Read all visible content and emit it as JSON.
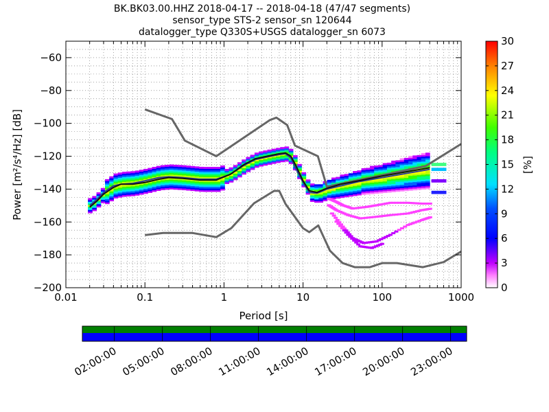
{
  "title": {
    "line1": "BK.BK03.00.HHZ   2018-04-17 -- 2018-04-18  (47/47 segments)",
    "line2": "sensor_type STS-2 sensor_sn 120644",
    "line3": "datalogger_type Q330S+USGS datalogger_sn 6073"
  },
  "colors": {
    "nlnm_nhnm": "#666666",
    "mean": "#111111",
    "mode": "#2a3a9a",
    "grid": "#666666",
    "bar_top": "#008000",
    "bar_bottom": "#0000ff",
    "axis": "#000000"
  },
  "chart_data": {
    "type": "heatmap",
    "xscale": "log",
    "xlabel": "Period [s]",
    "ylabel": "Power [m²/s⁴/Hz] [dB]",
    "xlim": [
      0.01,
      1000
    ],
    "ylim": [
      -200,
      -50
    ],
    "x_ticks": [
      0.01,
      0.1,
      1,
      10,
      100,
      1000
    ],
    "x_tick_labels": [
      "0.01",
      "0.1",
      "1",
      "10",
      "100",
      "1000"
    ],
    "y_ticks": [
      -200,
      -180,
      -160,
      -140,
      -120,
      -100,
      -80,
      -60
    ],
    "y_tick_labels": [
      "−200",
      "−180",
      "−160",
      "−140",
      "−120",
      "−100",
      "−80",
      "−60"
    ],
    "grid": "dotted",
    "colorbar": {
      "label": "[%]",
      "range": [
        0,
        30
      ],
      "ticks": [
        0,
        3,
        6,
        9,
        12,
        15,
        18,
        21,
        24,
        27,
        30
      ],
      "tick_labels": [
        "0",
        "3",
        "6",
        "9",
        "12",
        "15",
        "18",
        "21",
        "24",
        "27",
        "30"
      ]
    },
    "nhnm": {
      "x": [
        0.1,
        0.22,
        0.32,
        0.8,
        3.8,
        4.6,
        6.3,
        7.9,
        15.4,
        20,
        354.8,
        1000
      ],
      "y": [
        -91.5,
        -97.4,
        -110.5,
        -120,
        -98,
        -96.5,
        -101,
        -113.5,
        -120,
        -138.5,
        -126,
        -112.5
      ]
    },
    "nlnm": {
      "x": [
        0.1,
        0.17,
        0.4,
        0.8,
        1.24,
        2.4,
        4.3,
        5,
        6,
        10,
        12,
        15.6,
        21.9,
        31.6,
        45,
        70,
        101,
        154,
        328,
        600,
        1000
      ],
      "y": [
        -168,
        -166.7,
        -166.7,
        -169.2,
        -163.7,
        -148.6,
        -141.1,
        -141.1,
        -149,
        -163.8,
        -166.2,
        -162.1,
        -177.5,
        -185,
        -187.5,
        -187.5,
        -185,
        -185,
        -187.5,
        -184.4,
        -178
      ]
    },
    "mode_curve": {
      "x": [
        0.02,
        0.025,
        0.03,
        0.04,
        0.05,
        0.07,
        0.1,
        0.15,
        0.2,
        0.3,
        0.5,
        0.8,
        1.2,
        1.8,
        2.5,
        3.5,
        5,
        6,
        7,
        8,
        10,
        12,
        15,
        20,
        30,
        50,
        100,
        200,
        400
      ],
      "y": [
        -150,
        -146,
        -142,
        -138,
        -137,
        -136.5,
        -135,
        -133,
        -132.5,
        -133,
        -134,
        -134,
        -131,
        -125.5,
        -122,
        -120.5,
        -119,
        -118.5,
        -121,
        -127,
        -136,
        -142,
        -142.5,
        -140,
        -138,
        -135.5,
        -133,
        -130.5,
        -128
      ]
    },
    "mean_curve": {
      "x": [
        0.02,
        0.025,
        0.03,
        0.04,
        0.05,
        0.07,
        0.1,
        0.15,
        0.2,
        0.3,
        0.5,
        0.8,
        1.2,
        1.8,
        2.5,
        3.5,
        5,
        6,
        7,
        8,
        10,
        12,
        15,
        20,
        30,
        50,
        100,
        200,
        400
      ],
      "y": [
        -151,
        -147,
        -143,
        -139,
        -137,
        -137,
        -136,
        -134,
        -133,
        -133.5,
        -134.5,
        -134.5,
        -131,
        -125,
        -121.5,
        -120,
        -118.5,
        -118,
        -120,
        -125,
        -135,
        -141,
        -142,
        -139.5,
        -137,
        -135,
        -132,
        -129.5,
        -127
      ]
    },
    "scatter_branches": [
      {
        "x": [
          20,
          25,
          30,
          40,
          60,
          80,
          120,
          200,
          300,
          400
        ],
        "y": [
          -146,
          -148,
          -150,
          -152,
          -151,
          -150,
          -148.5,
          -148.5,
          -149,
          -149
        ]
      },
      {
        "x": [
          20,
          25,
          35,
          50,
          80,
          120,
          200,
          300,
          400
        ],
        "y": [
          -150,
          -153,
          -156,
          -158,
          -157,
          -156,
          -155,
          -153,
          -152
        ]
      },
      {
        "x": [
          22,
          30,
          40,
          55,
          80,
          120,
          200,
          300,
          400
        ],
        "y": [
          -155,
          -163,
          -170,
          -173,
          -172,
          -168,
          -162,
          -159,
          -157
        ]
      },
      {
        "x": [
          25,
          35,
          50,
          70,
          100
        ],
        "y": [
          -160,
          -168,
          -175,
          -176,
          -173
        ]
      }
    ],
    "time_axis": {
      "tick_labels": [
        "02:00:00",
        "05:00:00",
        "08:00:00",
        "11:00:00",
        "14:00:00",
        "17:00:00",
        "20:00:00",
        "23:00:00"
      ],
      "tick_hours": [
        2,
        5,
        8,
        11,
        14,
        17,
        20,
        23
      ],
      "range_hours": [
        0,
        24
      ],
      "segments": 47
    }
  }
}
